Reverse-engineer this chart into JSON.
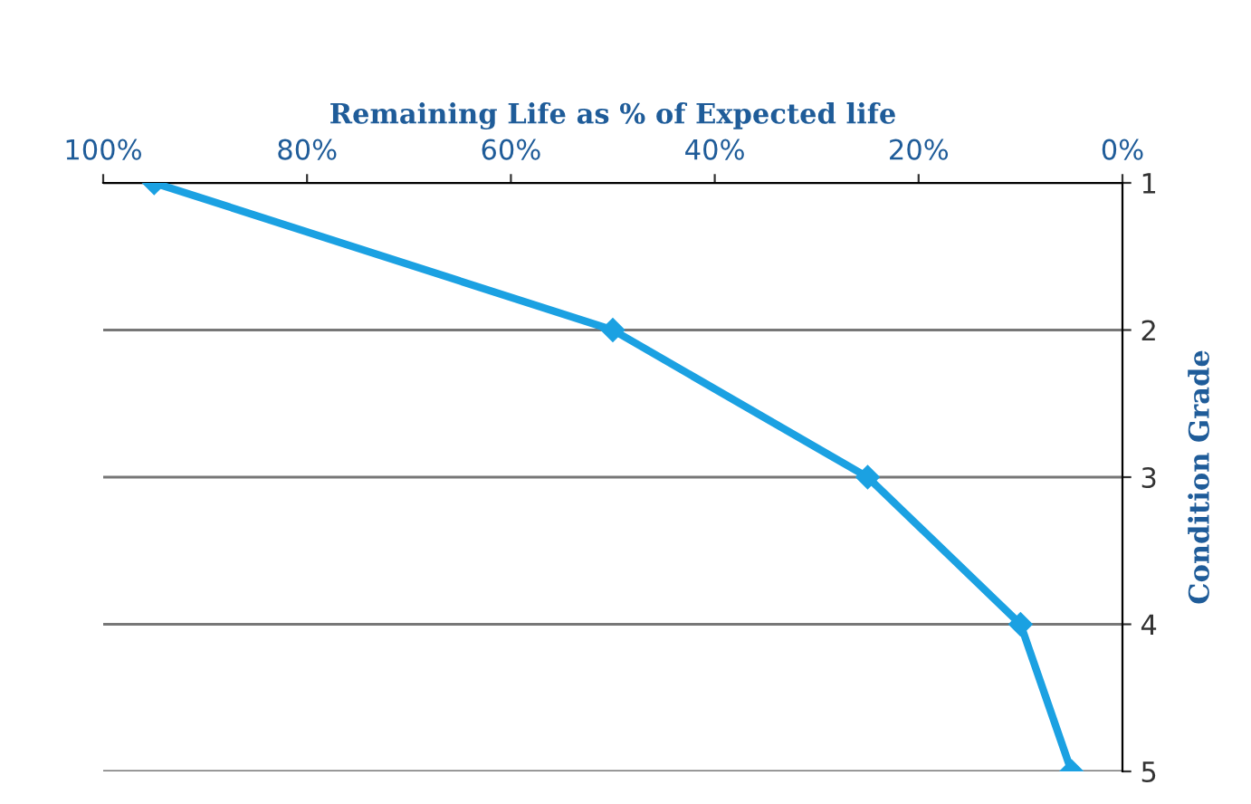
{
  "chart_data": {
    "type": "line",
    "xlabel": "Remaining Life as % of Expected life",
    "ylabel": "Condition Grade",
    "x": [
      95,
      50,
      25,
      10,
      5
    ],
    "series": [
      {
        "color": "#1ba1e2",
        "values": [
          1,
          2,
          3,
          4,
          5
        ]
      }
    ],
    "xlim": [
      100,
      0
    ],
    "xticks": [
      {
        "value": 100,
        "label": "100%"
      },
      {
        "value": 80,
        "label": "80%"
      },
      {
        "value": 60,
        "label": "60%"
      },
      {
        "value": 40,
        "label": "40%"
      },
      {
        "value": 20,
        "label": "20%"
      },
      {
        "value": 0,
        "label": "0%"
      }
    ],
    "ylim": [
      5,
      1
    ],
    "yticks": [
      1,
      2,
      3,
      4,
      5
    ],
    "grid": "y",
    "marker": "diamond",
    "line_style": "solid",
    "legend": false
  }
}
